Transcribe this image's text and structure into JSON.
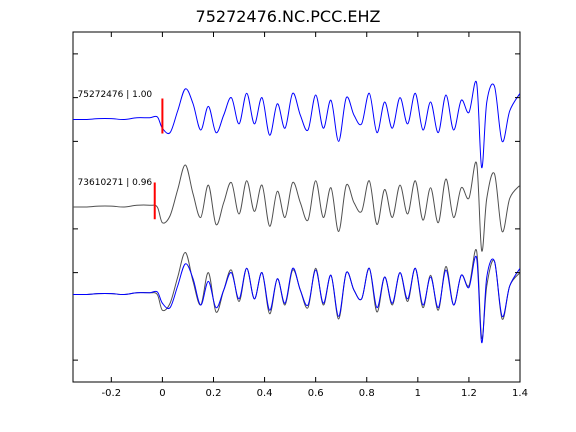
{
  "chart_data": {
    "type": "line",
    "title": "75272476.NC.PCC.EHZ",
    "xlabel": "",
    "ylabel": "",
    "xlim": [
      -0.35,
      1.4
    ],
    "x_ticks": [
      -0.2,
      0,
      0.2,
      0.4,
      0.6,
      0.8,
      1,
      1.2,
      1.4
    ],
    "x_tick_labels": [
      "-0.2",
      "0",
      "0.2",
      "0.4",
      "0.6",
      "0.8",
      "1",
      "1.2",
      "1.4"
    ],
    "ylim": [
      0,
      4
    ],
    "y_tick_labels": [],
    "grid": false,
    "legend": "none",
    "colors": {
      "blue": "#0000ff",
      "gray": "#505050",
      "pick": "#ff0000"
    },
    "sample_times": [
      -0.35,
      -0.3,
      -0.25,
      -0.2,
      -0.15,
      -0.1,
      -0.05,
      -0.02,
      0.0,
      0.03,
      0.06,
      0.09,
      0.12,
      0.15,
      0.18,
      0.21,
      0.24,
      0.27,
      0.3,
      0.33,
      0.36,
      0.39,
      0.42,
      0.45,
      0.48,
      0.51,
      0.54,
      0.57,
      0.6,
      0.63,
      0.66,
      0.69,
      0.72,
      0.75,
      0.78,
      0.81,
      0.84,
      0.87,
      0.9,
      0.93,
      0.96,
      0.99,
      1.02,
      1.05,
      1.08,
      1.11,
      1.14,
      1.17,
      1.2,
      1.23,
      1.25,
      1.27,
      1.3,
      1.33,
      1.36,
      1.4
    ],
    "series": [
      {
        "color": "blue",
        "baseline": 3.0,
        "values": [
          0.0,
          0.0,
          0.01,
          0.01,
          0.0,
          0.02,
          0.02,
          0.03,
          -0.1,
          -0.15,
          0.1,
          0.35,
          0.18,
          -0.12,
          0.15,
          -0.15,
          0.05,
          0.25,
          -0.05,
          0.3,
          -0.05,
          0.25,
          -0.18,
          0.18,
          -0.1,
          0.3,
          0.05,
          -0.12,
          0.28,
          -0.1,
          0.22,
          -0.25,
          0.25,
          0.05,
          -0.05,
          0.3,
          -0.15,
          0.2,
          -0.1,
          0.25,
          -0.05,
          0.3,
          -0.12,
          0.2,
          -0.15,
          0.28,
          -0.12,
          0.22,
          0.08,
          0.42,
          -0.55,
          0.2,
          0.38,
          -0.25,
          0.1,
          0.3
        ]
      },
      {
        "color": "gray",
        "baseline": 2.0,
        "values": [
          0.0,
          0.0,
          0.01,
          0.01,
          0.0,
          0.02,
          0.02,
          0.0,
          -0.18,
          -0.1,
          0.2,
          0.48,
          0.15,
          -0.12,
          0.25,
          -0.2,
          0.05,
          0.28,
          -0.08,
          0.3,
          -0.05,
          0.25,
          -0.22,
          0.18,
          -0.12,
          0.28,
          0.05,
          -0.15,
          0.3,
          -0.12,
          0.22,
          -0.28,
          0.25,
          0.05,
          -0.05,
          0.3,
          -0.2,
          0.2,
          -0.12,
          0.25,
          -0.08,
          0.3,
          -0.15,
          0.22,
          -0.18,
          0.32,
          -0.12,
          0.22,
          0.1,
          0.5,
          -0.5,
          0.1,
          0.38,
          -0.28,
          0.1,
          0.25
        ]
      },
      {
        "color": "gray",
        "baseline": 1.0,
        "values": [
          0.0,
          0.0,
          0.01,
          0.01,
          0.0,
          0.02,
          0.02,
          0.0,
          -0.18,
          -0.1,
          0.2,
          0.48,
          0.15,
          -0.12,
          0.25,
          -0.2,
          0.05,
          0.28,
          -0.08,
          0.3,
          -0.05,
          0.25,
          -0.22,
          0.18,
          -0.12,
          0.28,
          0.05,
          -0.15,
          0.3,
          -0.12,
          0.22,
          -0.28,
          0.25,
          0.05,
          -0.05,
          0.3,
          -0.2,
          0.2,
          -0.12,
          0.25,
          -0.08,
          0.3,
          -0.15,
          0.22,
          -0.18,
          0.32,
          -0.12,
          0.22,
          0.1,
          0.5,
          -0.5,
          0.1,
          0.38,
          -0.28,
          0.1,
          0.25
        ]
      },
      {
        "color": "blue",
        "baseline": 1.0,
        "values": [
          0.0,
          0.0,
          0.01,
          0.01,
          0.0,
          0.02,
          0.02,
          0.03,
          -0.1,
          -0.15,
          0.1,
          0.35,
          0.18,
          -0.12,
          0.15,
          -0.15,
          0.05,
          0.25,
          -0.05,
          0.3,
          -0.05,
          0.25,
          -0.18,
          0.18,
          -0.1,
          0.3,
          0.05,
          -0.12,
          0.28,
          -0.1,
          0.22,
          -0.25,
          0.25,
          0.05,
          -0.05,
          0.3,
          -0.15,
          0.2,
          -0.1,
          0.25,
          -0.05,
          0.3,
          -0.12,
          0.2,
          -0.15,
          0.28,
          -0.12,
          0.22,
          0.08,
          0.42,
          -0.55,
          0.2,
          0.38,
          -0.25,
          0.1,
          0.3
        ]
      }
    ],
    "annotations": [
      {
        "text": "75272476 | 1.00",
        "x": -0.34,
        "y": 3.26
      },
      {
        "text": "73610271 | 0.96",
        "x": -0.34,
        "y": 2.25
      }
    ],
    "picks": [
      {
        "x": 0.0,
        "y_from": 2.84,
        "y_to": 3.24
      },
      {
        "x": -0.03,
        "y_from": 1.86,
        "y_to": 2.28
      }
    ]
  }
}
